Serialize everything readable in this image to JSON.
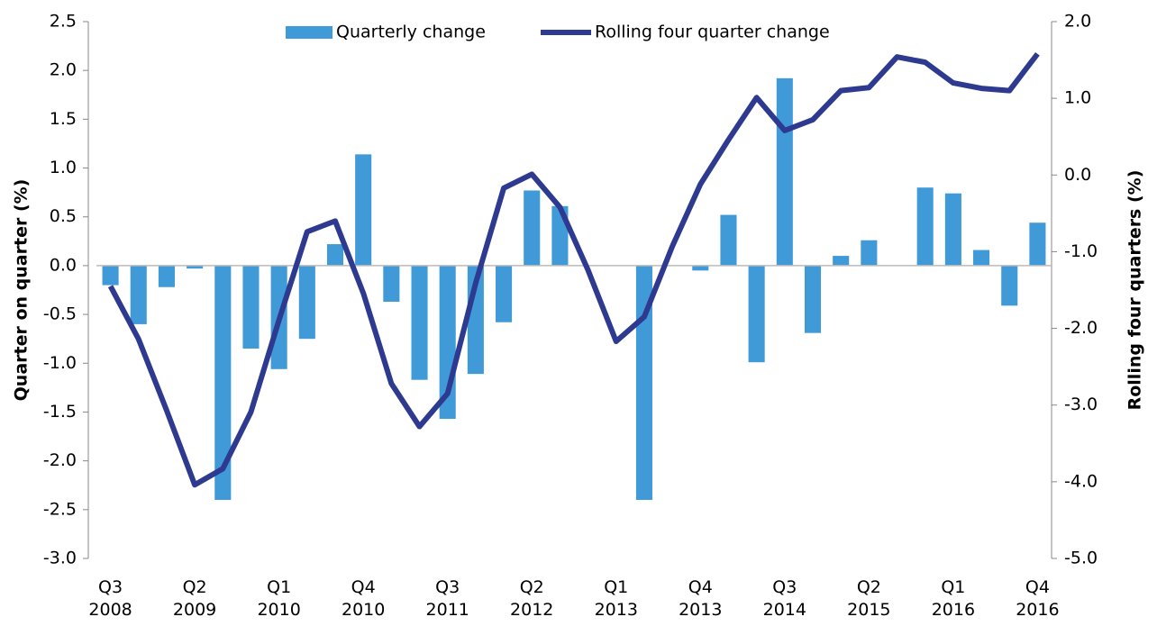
{
  "chart_data": {
    "type": "bar+line",
    "categories": [
      "Q3 2008",
      null,
      null,
      "Q2 2009",
      null,
      null,
      "Q1 2010",
      null,
      null,
      "Q4 2010",
      null,
      null,
      "Q3 2011",
      null,
      null,
      "Q2 2012",
      null,
      null,
      "Q1 2013",
      null,
      null,
      "Q4 2013",
      null,
      null,
      "Q3 2014",
      null,
      null,
      "Q2 2015",
      null,
      null,
      "Q1 2016",
      null,
      null,
      "Q4 2016"
    ],
    "series": [
      {
        "name": "Quarterly change",
        "type": "bar",
        "color": "#419ad8",
        "values": [
          -0.2,
          -0.6,
          -0.22,
          -0.03,
          -2.4,
          -0.85,
          -1.06,
          -0.75,
          0.22,
          1.14,
          -0.37,
          -1.17,
          -1.57,
          -1.11,
          -0.58,
          0.77,
          0.61,
          0,
          0,
          -2.4,
          0,
          -0.05,
          0.52,
          -0.99,
          1.92,
          -0.69,
          0.1,
          0.26,
          0,
          0.8,
          0.74,
          0.16,
          -0.41,
          0.44
        ]
      },
      {
        "name": "Rolling four quarter change",
        "type": "line",
        "axis": "y2",
        "color": "#2e3a8f",
        "values": [
          -1.45,
          -2.14,
          -3.07,
          -4.04,
          -3.83,
          -3.09,
          -1.89,
          -0.74,
          -0.6,
          -1.54,
          -2.72,
          -3.28,
          -2.85,
          -1.41,
          -0.17,
          0.01,
          -0.42,
          -1.24,
          -2.17,
          -1.85,
          -0.93,
          -0.12,
          0.46,
          1.01,
          0.58,
          0.72,
          1.1,
          1.14,
          1.54,
          1.47,
          1.2,
          1.13,
          1.1,
          1.58
        ]
      }
    ],
    "ylabel": "Quarter on quarter (%)",
    "y2label": "Rolling four quarters (%)",
    "ylim": [
      -3.0,
      2.5
    ],
    "yticks": [
      {
        "value": -3.0,
        "label": "-3.0"
      },
      -2.5,
      {
        "value": -2.0,
        "label": "-2.0"
      },
      -1.5,
      {
        "value": -1.0,
        "label": "-1.0"
      },
      -0.5,
      {
        "value": 0,
        "label": "0.0"
      },
      0.5,
      {
        "value": 1.0,
        "label": "1.0"
      },
      1.5,
      {
        "value": 2.0,
        "label": "2.0"
      },
      2.5
    ],
    "y2lim": [
      -5.0,
      2.0
    ],
    "y2ticks": [
      {
        "value": -5.0,
        "label": "-5.0"
      },
      {
        "value": -4.0,
        "label": "-4.0"
      },
      {
        "value": -3.0,
        "label": "-3.0"
      },
      {
        "value": -2.0,
        "label": "-2.0"
      },
      {
        "value": -1.0,
        "label": "-1.0"
      },
      {
        "value": 0,
        "label": "0.0"
      },
      {
        "value": 1.0,
        "label": "1.0"
      },
      {
        "value": 2.0,
        "label": "2.0"
      }
    ],
    "legend": "top"
  }
}
